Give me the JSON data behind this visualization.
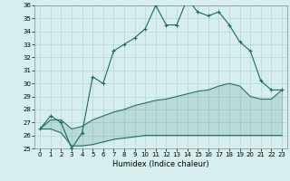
{
  "title": "",
  "xlabel": "Humidex (Indice chaleur)",
  "bg_color": "#d6eeee",
  "line_color": "#1a6b5a",
  "grid_color": "#b8d4d4",
  "x_values": [
    0,
    1,
    2,
    3,
    4,
    5,
    6,
    7,
    8,
    9,
    10,
    11,
    12,
    13,
    14,
    15,
    16,
    17,
    18,
    19,
    20,
    21,
    22,
    23
  ],
  "main_line": [
    26.5,
    27.5,
    27.0,
    25.0,
    26.2,
    30.5,
    30.0,
    32.5,
    33.0,
    33.5,
    34.2,
    36.0,
    34.5,
    34.5,
    36.5,
    35.5,
    35.2,
    35.5,
    34.5,
    33.2,
    32.5,
    30.2,
    29.5,
    29.5
  ],
  "lower_line": [
    26.5,
    26.5,
    26.2,
    25.2,
    25.2,
    25.3,
    25.5,
    25.7,
    25.8,
    25.9,
    26.0,
    26.0,
    26.0,
    26.0,
    26.0,
    26.0,
    26.0,
    26.0,
    26.0,
    26.0,
    26.0,
    26.0,
    26.0,
    26.0
  ],
  "upper_line": [
    26.5,
    27.2,
    27.2,
    26.5,
    26.7,
    27.2,
    27.5,
    27.8,
    28.0,
    28.3,
    28.5,
    28.7,
    28.8,
    29.0,
    29.2,
    29.4,
    29.5,
    29.8,
    30.0,
    29.8,
    29.0,
    28.8,
    28.8,
    29.5
  ],
  "ylim": [
    25,
    36
  ],
  "yticks": [
    25,
    26,
    27,
    28,
    29,
    30,
    31,
    32,
    33,
    34,
    35,
    36
  ],
  "xticks": [
    0,
    1,
    2,
    3,
    4,
    5,
    6,
    7,
    8,
    9,
    10,
    11,
    12,
    13,
    14,
    15,
    16,
    17,
    18,
    19,
    20,
    21,
    22,
    23
  ]
}
